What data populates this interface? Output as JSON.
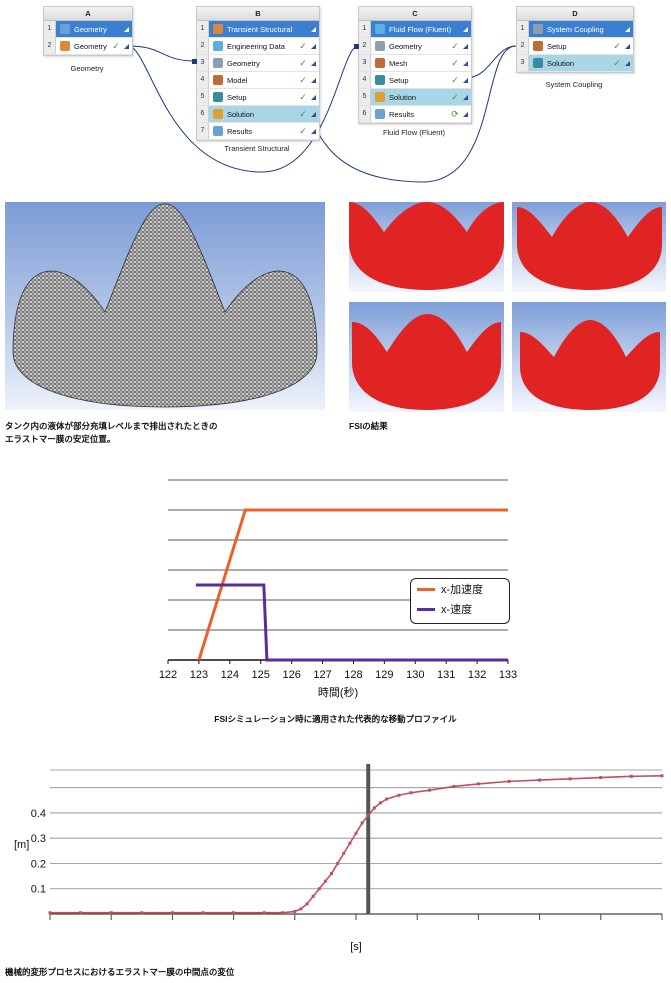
{
  "schematic": {
    "systems": [
      {
        "letter": "A",
        "caption": "Geometry",
        "rows": [
          {
            "num": "1",
            "label": "Geometry",
            "status": "",
            "title": true
          },
          {
            "num": "2",
            "label": "Geometry",
            "status": "✓",
            "hl": false
          }
        ]
      },
      {
        "letter": "B",
        "caption": "Transient Structural",
        "rows": [
          {
            "num": "1",
            "label": "Transient Structural",
            "status": "",
            "title": true
          },
          {
            "num": "2",
            "label": "Engineering Data",
            "status": "✓"
          },
          {
            "num": "3",
            "label": "Geometry",
            "status": "✓"
          },
          {
            "num": "4",
            "label": "Model",
            "status": "✓"
          },
          {
            "num": "5",
            "label": "Setup",
            "status": "✓"
          },
          {
            "num": "6",
            "label": "Solution",
            "status": "✓",
            "hl": true
          },
          {
            "num": "7",
            "label": "Results",
            "status": "✓"
          }
        ]
      },
      {
        "letter": "C",
        "caption": "Fluid Flow (Fluent)",
        "rows": [
          {
            "num": "1",
            "label": "Fluid Flow (Fluent)",
            "status": "",
            "title": true
          },
          {
            "num": "2",
            "label": "Geometry",
            "status": "✓"
          },
          {
            "num": "3",
            "label": "Mesh",
            "status": "✓"
          },
          {
            "num": "4",
            "label": "Setup",
            "status": "✓"
          },
          {
            "num": "5",
            "label": "Solution",
            "status": "✓",
            "hl": true
          },
          {
            "num": "6",
            "label": "Results",
            "status": "⟳"
          }
        ]
      },
      {
        "letter": "D",
        "caption": "System Coupling",
        "rows": [
          {
            "num": "1",
            "label": "System Coupling",
            "status": "",
            "title": true
          },
          {
            "num": "2",
            "label": "Setup",
            "status": "✓"
          },
          {
            "num": "3",
            "label": "Solution",
            "status": "✓",
            "hl": true
          }
        ]
      }
    ]
  },
  "captions": {
    "mesh_caption_line1": "タンク内の液体が部分充填レベルまで排出されたときの",
    "mesh_caption_line2": "エラストマー膜の安定位置。",
    "fsi_caption": "FSIの結果",
    "chart1_caption": "FSIシミュレーション時に適用された代表的な移動プロファイル",
    "chart2_caption": "機械的変形プロセスにおけるエラストマー膜の中間点の変位"
  },
  "colors": {
    "accel": "#e8622a",
    "velocity": "#5a2d9c",
    "displacement": "#c0505a",
    "membrane_red": "#e02424"
  },
  "chart_data": [
    {
      "type": "line",
      "title": "",
      "xlabel": "時間(秒)",
      "ylabel": "",
      "xlim": [
        122,
        133
      ],
      "xticks": [
        "122",
        "123",
        "124",
        "125",
        "126",
        "127",
        "128",
        "129",
        "130",
        "131",
        "132",
        "133"
      ],
      "ylim": [
        0,
        6
      ],
      "grid": true,
      "legend_position": "right",
      "series": [
        {
          "name": "x-加速度",
          "color": "#e8622a",
          "points": [
            [
              123,
              0
            ],
            [
              124.5,
              5
            ],
            [
              133,
              5
            ]
          ]
        },
        {
          "name": "x-速度",
          "color": "#5a2d9c",
          "points": [
            [
              122.9,
              2.5
            ],
            [
              125.1,
              2.5
            ],
            [
              125.2,
              0
            ],
            [
              133,
              0
            ]
          ]
        }
      ]
    },
    {
      "type": "line",
      "title": "",
      "xlabel": "[s]",
      "ylabel": "[m]",
      "yticks": [
        "0.1",
        "0.2",
        "0.3",
        "0.4"
      ],
      "ylim": [
        0,
        0.57
      ],
      "xlim": [
        0,
        100
      ],
      "grid": true,
      "series": [
        {
          "name": "",
          "color": "#c0505a",
          "points": [
            [
              0,
              0.005
            ],
            [
              5,
              0.005
            ],
            [
              10,
              0.005
            ],
            [
              15,
              0.005
            ],
            [
              20,
              0.005
            ],
            [
              25,
              0.005
            ],
            [
              30,
              0.005
            ],
            [
              35,
              0.005
            ],
            [
              38,
              0.005
            ],
            [
              40,
              0.01
            ],
            [
              41,
              0.02
            ],
            [
              42,
              0.04
            ],
            [
              43,
              0.07
            ],
            [
              44,
              0.1
            ],
            [
              45,
              0.13
            ],
            [
              46,
              0.16
            ],
            [
              47,
              0.2
            ],
            [
              48,
              0.24
            ],
            [
              49,
              0.28
            ],
            [
              50,
              0.32
            ],
            [
              51,
              0.36
            ],
            [
              52,
              0.39
            ],
            [
              53,
              0.42
            ],
            [
              54,
              0.44
            ],
            [
              55,
              0.455
            ],
            [
              57,
              0.47
            ],
            [
              59,
              0.48
            ],
            [
              62,
              0.49
            ],
            [
              66,
              0.505
            ],
            [
              70,
              0.515
            ],
            [
              75,
              0.525
            ],
            [
              80,
              0.53
            ],
            [
              85,
              0.535
            ],
            [
              90,
              0.54
            ],
            [
              95,
              0.545
            ],
            [
              100,
              0.547
            ]
          ]
        }
      ],
      "marker_x": 52
    }
  ]
}
